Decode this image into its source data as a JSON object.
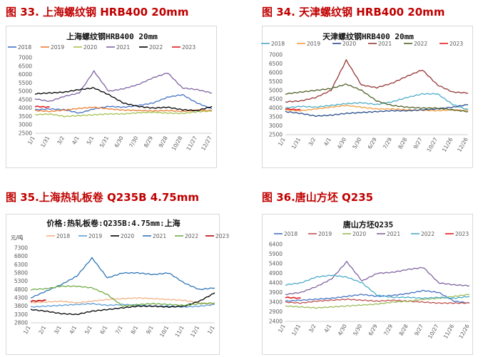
{
  "figures": [
    {
      "title": "图 33. 上海螺纹钢 HRB400  20mm"
    },
    {
      "title": "图 34.  天津螺纹钢 HRB400  20mm"
    },
    {
      "title": "图 35.上海热轧板卷 Q235B 4.75mm"
    },
    {
      "title": "图 36.唐山方坯 Q235"
    }
  ],
  "chart_data": [
    {
      "type": "line",
      "title": "上海螺纹钢HRB400 20mm",
      "ylim": [
        2500,
        7000
      ],
      "yticks": [
        2500,
        3000,
        3500,
        4000,
        4500,
        5000,
        5500,
        6000,
        6500,
        7000
      ],
      "categories": [
        "1/1",
        "1/31",
        "3/2",
        "4/1",
        "5/1",
        "5/31",
        "6/30",
        "7/30",
        "8/29",
        "9/28",
        "10/28",
        "11/27",
        "12/27"
      ],
      "series": [
        {
          "name": "2018",
          "color": "#4472c4",
          "values": [
            3900,
            3950,
            3900,
            3700,
            3950,
            4100,
            4050,
            4150,
            4300,
            4650,
            4800,
            4300,
            3950
          ]
        },
        {
          "name": "2019",
          "color": "#ed7d31",
          "values": [
            3850,
            3800,
            3880,
            3980,
            4050,
            3950,
            3880,
            3860,
            3830,
            3850,
            3800,
            3880,
            3850
          ]
        },
        {
          "name": "2020",
          "color": "#a5c24f",
          "values": [
            3600,
            3650,
            3500,
            3550,
            3600,
            3650,
            3650,
            3720,
            3750,
            3700,
            3680,
            3780,
            3820
          ]
        },
        {
          "name": "2021",
          "color": "#8064a2",
          "values": [
            4550,
            4400,
            4700,
            4900,
            6200,
            5000,
            5150,
            5400,
            5800,
            6100,
            5200,
            5100,
            4900
          ]
        },
        {
          "name": "2022",
          "color": "#000000",
          "values": [
            4850,
            4900,
            4950,
            5100,
            5200,
            4800,
            4300,
            4100,
            4000,
            4050,
            3900,
            3850,
            4100
          ]
        },
        {
          "name": "2023",
          "color": "#e41a1c",
          "values": [
            4100,
            4050,
            null,
            null,
            null,
            null,
            null,
            null,
            null,
            null,
            null,
            null,
            null
          ]
        }
      ]
    },
    {
      "type": "line",
      "title": "天津螺纹钢HRB400 20mm",
      "ylim": [
        2500,
        7000
      ],
      "yticks": [
        2500,
        3000,
        3500,
        4000,
        4500,
        5000,
        5500,
        6000,
        6500,
        7000
      ],
      "categories": [
        "1/1",
        "1/31",
        "3/2",
        "4/1",
        "4/30",
        "5/30",
        "6/29",
        "7/29",
        "8/28",
        "9/27",
        "10/27",
        "11/26",
        "12/26"
      ],
      "series": [
        {
          "name": "2018",
          "color": "#4bacc6",
          "values": [
            4000,
            4100,
            4050,
            4150,
            4250,
            4300,
            4200,
            4350,
            4600,
            4800,
            4800,
            4200,
            3900
          ]
        },
        {
          "name": "2019",
          "color": "#f59d3d",
          "values": [
            3900,
            3850,
            3950,
            4050,
            4150,
            4050,
            3950,
            3950,
            3900,
            3880,
            3850,
            3900,
            3850
          ]
        },
        {
          "name": "2020",
          "color": "#254b8a",
          "values": [
            3800,
            3700,
            3550,
            3600,
            3700,
            3750,
            3800,
            3850,
            3850,
            3900,
            3950,
            4050,
            4200
          ]
        },
        {
          "name": "2021",
          "color": "#953735",
          "values": [
            4350,
            4400,
            4600,
            5000,
            6700,
            5300,
            5150,
            5400,
            5800,
            6150,
            5300,
            4900,
            4850
          ]
        },
        {
          "name": "2022",
          "color": "#4f6228",
          "values": [
            4800,
            4900,
            5000,
            5100,
            5350,
            5000,
            4400,
            4150,
            4050,
            4000,
            4000,
            3900,
            3800
          ]
        },
        {
          "name": "2023",
          "color": "#e41a1c",
          "values": [
            3950,
            3900,
            null,
            null,
            null,
            null,
            null,
            null,
            null,
            null,
            null,
            null,
            null
          ]
        }
      ]
    },
    {
      "type": "line",
      "title": "价格:热轧板卷:Q235B:4.75mm:上海",
      "ylabel": "元/吨",
      "ylim": [
        2800,
        7300
      ],
      "yticks": [
        2800,
        3300,
        3800,
        4300,
        4800,
        5300,
        5800,
        6300,
        6800,
        7300
      ],
      "categories": [
        "1/1",
        "2/1",
        "3/1",
        "4/1",
        "5/1",
        "6/1",
        "7/1",
        "8/1",
        "9/1",
        "10/1",
        "11/1",
        "12/1",
        "1/1"
      ],
      "series": [
        {
          "name": "2018",
          "color": "#f4b183",
          "values": [
            4000,
            4050,
            4100,
            4000,
            4100,
            4200,
            4250,
            4300,
            4250,
            4200,
            4150,
            4000,
            3900
          ]
        },
        {
          "name": "2019",
          "color": "#5b9bd5",
          "values": [
            3750,
            3800,
            3850,
            3900,
            3950,
            3850,
            3900,
            3850,
            3800,
            3800,
            3750,
            3800,
            3900
          ]
        },
        {
          "name": "2020",
          "color": "#000000",
          "values": [
            3600,
            3500,
            3350,
            3300,
            3500,
            3600,
            3700,
            3800,
            3800,
            3750,
            3800,
            4100,
            4600
          ]
        },
        {
          "name": "2021",
          "color": "#2e75b6",
          "values": [
            4300,
            4700,
            5100,
            5600,
            6700,
            5500,
            5800,
            5800,
            5700,
            5800,
            5200,
            4800,
            4900
          ]
        },
        {
          "name": "2022",
          "color": "#70ad47",
          "values": [
            4800,
            4850,
            5000,
            5000,
            4900,
            4500,
            3800,
            3900,
            3950,
            3900,
            3850,
            3950,
            4000
          ]
        },
        {
          "name": "2023",
          "color": "#c00000",
          "values": [
            4100,
            4150,
            null,
            null,
            null,
            null,
            null,
            null,
            null,
            null,
            null,
            null,
            null
          ]
        }
      ]
    },
    {
      "type": "line",
      "title": "唐山方坯Q235",
      "ylim": [
        2400,
        6400
      ],
      "yticks": [
        2400,
        2900,
        3400,
        3900,
        4400,
        4900,
        5400,
        5900,
        6400
      ],
      "categories": [
        "1/1",
        "1/31",
        "3/2",
        "4/1",
        "4/30",
        "5/30",
        "6/29",
        "7/29",
        "8/28",
        "9/27",
        "10/27",
        "11/26",
        "12/26"
      ],
      "series": [
        {
          "name": "2018",
          "color": "#4472c4",
          "values": [
            3450,
            3500,
            3550,
            3600,
            3700,
            3800,
            3700,
            3750,
            3850,
            4000,
            3900,
            3450,
            3350
          ]
        },
        {
          "name": "2019",
          "color": "#c0504d",
          "values": [
            3400,
            3350,
            3450,
            3500,
            3550,
            3500,
            3450,
            3500,
            3450,
            3400,
            3350,
            3350,
            3350
          ]
        },
        {
          "name": "2020",
          "color": "#9bbb59",
          "values": [
            3200,
            3150,
            3100,
            3150,
            3200,
            3250,
            3300,
            3400,
            3450,
            3550,
            3600,
            3700,
            3800
          ]
        },
        {
          "name": "2021",
          "color": "#8064a2",
          "values": [
            3800,
            3900,
            4200,
            4600,
            5500,
            4500,
            4900,
            4950,
            5100,
            5200,
            4400,
            4300,
            4250
          ]
        },
        {
          "name": "2022",
          "color": "#4bacc6",
          "values": [
            4300,
            4400,
            4700,
            4800,
            4700,
            4400,
            3750,
            3650,
            3650,
            3600,
            3650,
            3600,
            3700
          ]
        },
        {
          "name": "2023",
          "color": "#e41a1c",
          "values": [
            3650,
            3600,
            null,
            null,
            null,
            null,
            null,
            null,
            null,
            null,
            null,
            null,
            null
          ]
        }
      ]
    }
  ]
}
